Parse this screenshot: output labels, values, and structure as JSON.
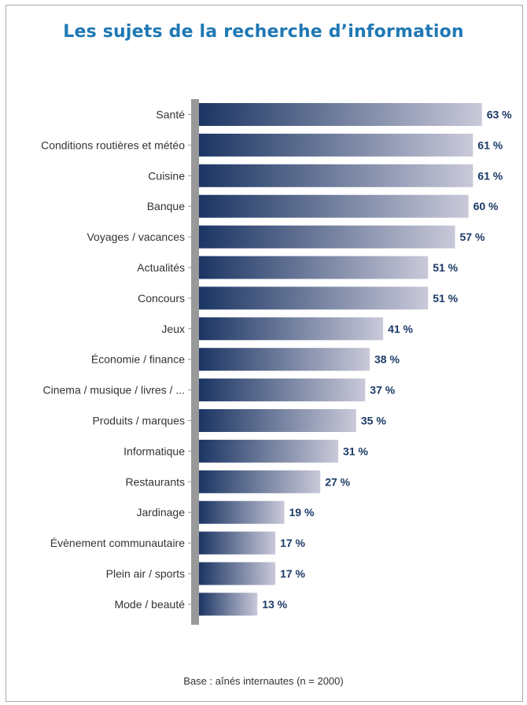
{
  "chart_data": {
    "type": "bar",
    "orientation": "horizontal",
    "title": "Les sujets de la recherche d’information",
    "categories": [
      "Santé",
      "Conditions routières et météo",
      "Cuisine",
      "Banque",
      "Voyages / vacances",
      "Actualités",
      "Concours",
      "Jeux",
      "Économie / finance",
      "Cinema / musique / livres / ...",
      "Produits / marques",
      "Informatique",
      "Restaurants",
      "Jardinage",
      "Évènement communautaire",
      "Plein air / sports",
      "Mode / beauté"
    ],
    "values": [
      63,
      61,
      61,
      60,
      57,
      51,
      51,
      41,
      38,
      37,
      35,
      31,
      27,
      19,
      17,
      17,
      13
    ],
    "value_labels": [
      "63 %",
      "61 %",
      "61 %",
      "60 %",
      "57 %",
      "51 %",
      "51 %",
      "41 %",
      "38 %",
      "37 %",
      "35 %",
      "31 %",
      "27 %",
      "19 %",
      "17 %",
      "17 %",
      "13 %"
    ],
    "unit": "%",
    "xlim": [
      0,
      63
    ],
    "grid": false,
    "colors": {
      "bar_start": "#1b3563",
      "bar_end": "#c9c9d9",
      "axis": "#999999",
      "title": "#1f78b4",
      "value": "#1c3a66"
    }
  },
  "footer": {
    "base_note": "Base : aînés internautes (n = 2000)"
  }
}
